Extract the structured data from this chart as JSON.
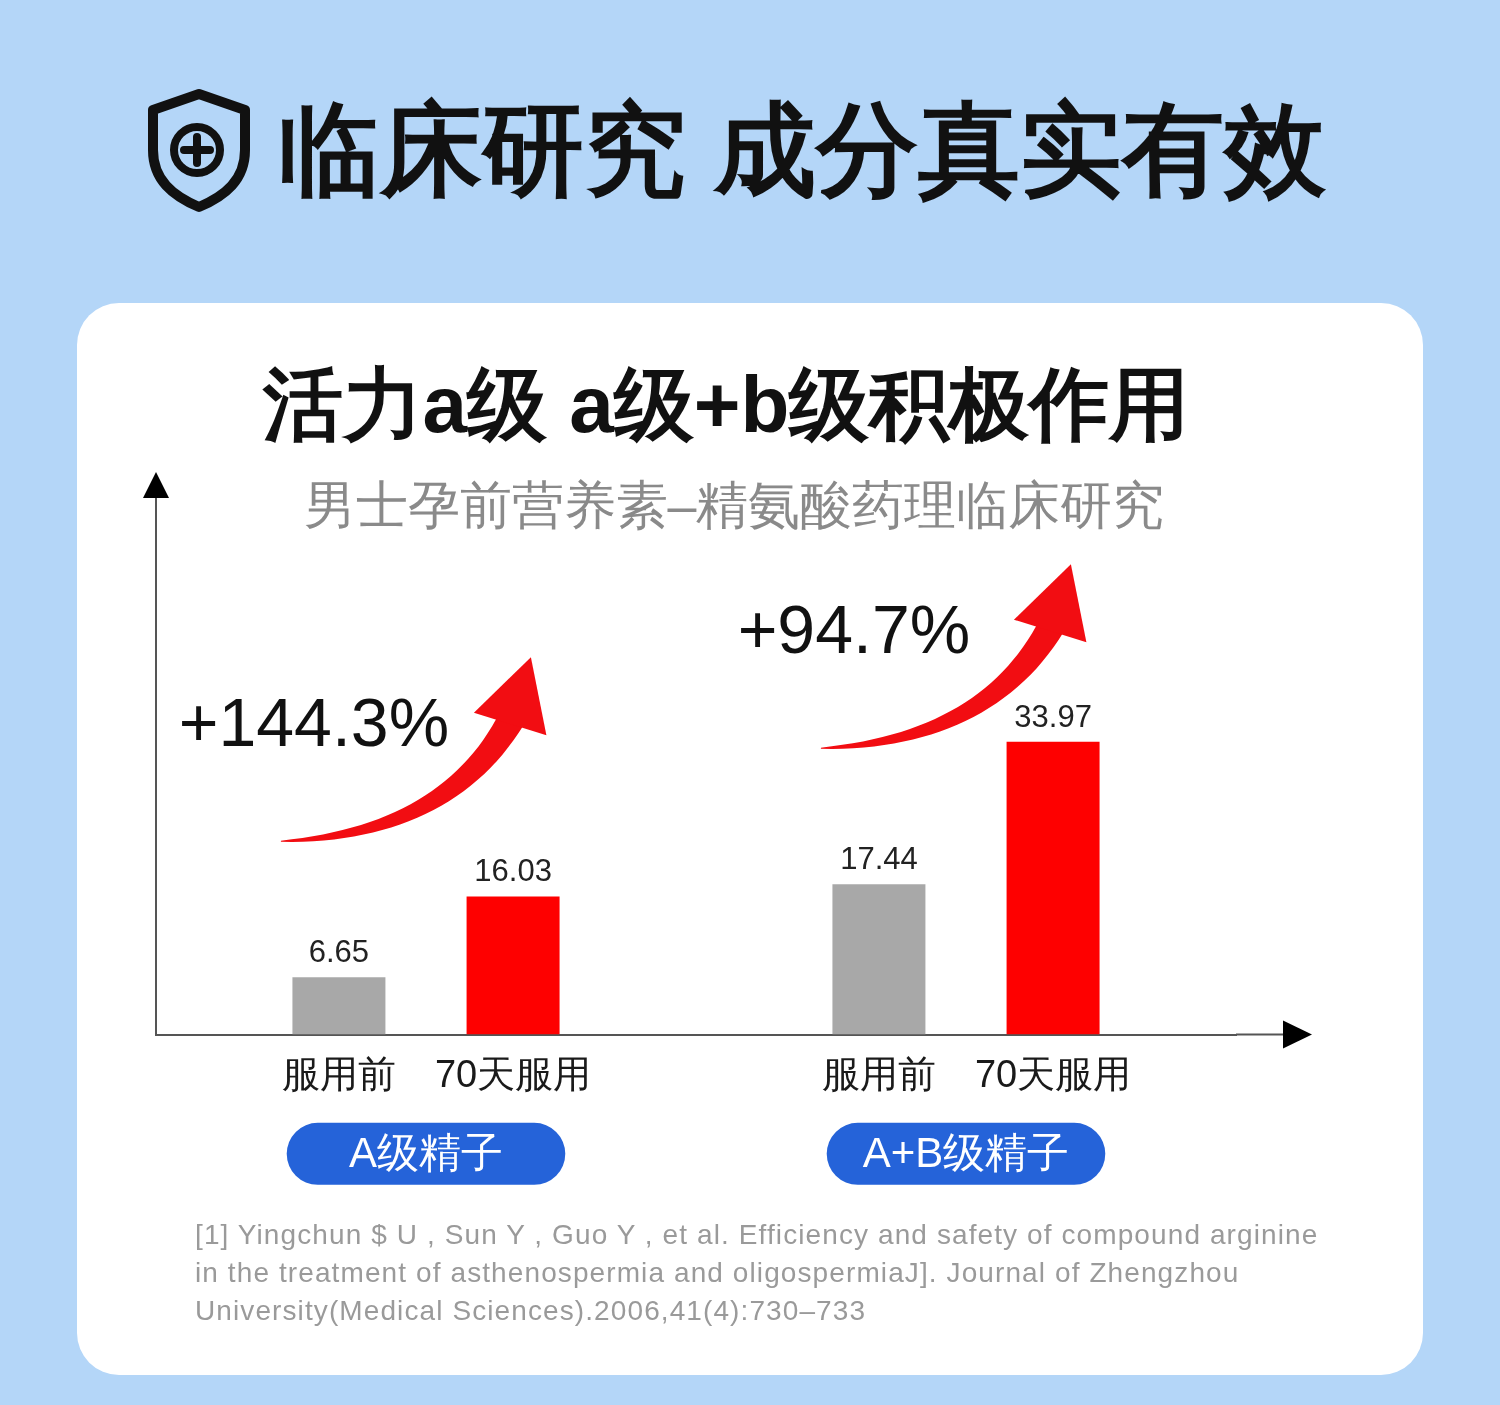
{
  "chart_data": {
    "type": "bar",
    "title": "临床研究 成分真实有效",
    "subtitle": "活力a级 a级+b级积极作用",
    "categories": [
      "A级精子",
      "A+B级精子"
    ],
    "series": [
      {
        "name": "服用前",
        "color": "#a8a8a8",
        "values": [
          6.65,
          17.44
        ]
      },
      {
        "name": "70天服用",
        "color": "#fe0000",
        "values": [
          16.03,
          33.97
        ]
      }
    ],
    "ylim": [
      0,
      62
    ],
    "data_labels": true,
    "tick_labels": "x",
    "annotations": [
      "男士孕前营养素–精氨酸药理临床研究",
      "+144.3%",
      "+94.7%",
      "[1] Yingchun $ U , Sun Y , Guo Y , et al. Efficiency and safety of compound arginine in the treatment of asthenospermia and oligospermiaJ]. Journal of Zhengzhou University(Medical Sciences).2006,41(4):730–733"
    ]
  }
}
